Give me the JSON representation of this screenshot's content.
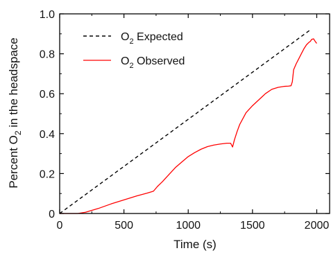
{
  "chart_data": {
    "type": "line",
    "title": "",
    "xlabel": "Time (s)",
    "ylabel_parts": [
      "Percent O",
      "2",
      " in the headspace"
    ],
    "xlim": [
      0,
      2100
    ],
    "ylim": [
      0,
      1.0
    ],
    "xticks": [
      0,
      500,
      1000,
      1500,
      2000
    ],
    "yticks": [
      0,
      0.2,
      0.4,
      0.6,
      0.8,
      1.0
    ],
    "xtick_labels": [
      "0",
      "500",
      "1000",
      "1500",
      "2000"
    ],
    "ytick_labels": [
      "0",
      "0.2",
      "0.4",
      "0.6",
      "0.8",
      "1.0"
    ],
    "grid": false,
    "legend_position": "top-left",
    "series": [
      {
        "name_parts": [
          "O",
          "2",
          " Expected"
        ],
        "style": "dashed",
        "color": "#000000",
        "points": [
          [
            0,
            0.0
          ],
          [
            1950,
            0.92
          ]
        ]
      },
      {
        "name_parts": [
          "O",
          "2",
          " Observed"
        ],
        "style": "solid",
        "color": "#ff0000",
        "points": [
          [
            0,
            0.0
          ],
          [
            80,
            0.0
          ],
          [
            140,
            0.0
          ],
          [
            200,
            0.006
          ],
          [
            300,
            0.025
          ],
          [
            400,
            0.048
          ],
          [
            500,
            0.068
          ],
          [
            600,
            0.088
          ],
          [
            680,
            0.102
          ],
          [
            720,
            0.11
          ],
          [
            730,
            0.112
          ],
          [
            760,
            0.135
          ],
          [
            800,
            0.16
          ],
          [
            850,
            0.195
          ],
          [
            900,
            0.23
          ],
          [
            950,
            0.258
          ],
          [
            1000,
            0.285
          ],
          [
            1050,
            0.305
          ],
          [
            1100,
            0.322
          ],
          [
            1150,
            0.335
          ],
          [
            1200,
            0.343
          ],
          [
            1250,
            0.348
          ],
          [
            1300,
            0.352
          ],
          [
            1330,
            0.352
          ],
          [
            1345,
            0.333
          ],
          [
            1360,
            0.37
          ],
          [
            1380,
            0.41
          ],
          [
            1400,
            0.445
          ],
          [
            1450,
            0.505
          ],
          [
            1500,
            0.54
          ],
          [
            1550,
            0.57
          ],
          [
            1600,
            0.6
          ],
          [
            1650,
            0.622
          ],
          [
            1700,
            0.632
          ],
          [
            1750,
            0.637
          ],
          [
            1780,
            0.638
          ],
          [
            1800,
            0.64
          ],
          [
            1810,
            0.66
          ],
          [
            1820,
            0.72
          ],
          [
            1840,
            0.75
          ],
          [
            1860,
            0.775
          ],
          [
            1880,
            0.8
          ],
          [
            1900,
            0.825
          ],
          [
            1920,
            0.845
          ],
          [
            1940,
            0.858
          ],
          [
            1950,
            0.862
          ],
          [
            1960,
            0.872
          ],
          [
            1975,
            0.875
          ],
          [
            1990,
            0.86
          ],
          [
            2000,
            0.852
          ]
        ]
      }
    ]
  }
}
